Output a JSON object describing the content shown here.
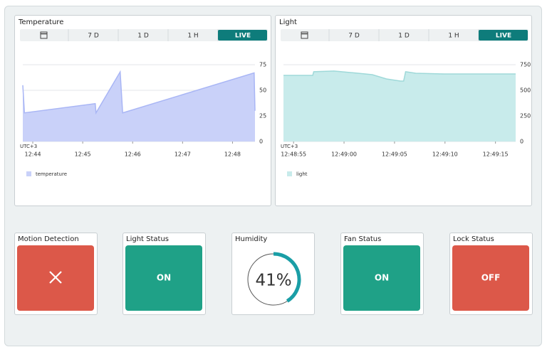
{
  "charts": [
    {
      "title": "Temperature",
      "range_buttons": [
        "7 D",
        "1 D",
        "1 H",
        "LIVE"
      ],
      "timezone": "UTC+3",
      "chart_data": {
        "type": "area",
        "x": [
          45828,
          45830,
          45915,
          45916,
          45945,
          45948,
          46106,
          46107
        ],
        "series": [
          {
            "name": "temperature",
            "color": "#a9b6f5",
            "fill": "#c9d1f9",
            "values": [
              55,
              28,
              37,
              28,
              68,
              28,
              67,
              30
            ]
          }
        ],
        "xlim": [
          45828,
          46107
        ],
        "xticks": [
          {
            "value": 45840,
            "label": "12:44"
          },
          {
            "value": 45900,
            "label": "12:45"
          },
          {
            "value": 45960,
            "label": "12:46"
          },
          {
            "value": 46020,
            "label": "12:47"
          },
          {
            "value": 46080,
            "label": "12:48"
          }
        ],
        "ylim": [
          0,
          75
        ],
        "yticks": [
          0,
          25,
          50,
          75
        ],
        "grid": true
      }
    },
    {
      "title": "Light",
      "range_buttons": [
        "7 D",
        "1 D",
        "1 H",
        "LIVE"
      ],
      "timezone": "UTC+3",
      "chart_data": {
        "type": "area",
        "x": [
          46134,
          46136.9,
          46137,
          46139,
          46141.4,
          46142.8,
          46144.2,
          46145.6,
          46145.9,
          46146.1,
          46147.1,
          46149.9,
          46157
        ],
        "series": [
          {
            "name": "light",
            "color": "#9fd9d9",
            "fill": "#c8ebeb",
            "values": [
              646,
              646,
              681,
              688,
              667,
              653,
              611,
              590,
              590,
              681,
              667,
              660,
              660
            ]
          }
        ],
        "xlim": [
          46134,
          46157
        ],
        "xticks": [
          {
            "value": 46135,
            "label": "12:48:55"
          },
          {
            "value": 46140,
            "label": "12:49:00"
          },
          {
            "value": 46145,
            "label": "12:49:05"
          },
          {
            "value": 46150,
            "label": "12:49:10"
          },
          {
            "value": 46155,
            "label": "12:49:15"
          }
        ],
        "ylim": [
          0,
          750
        ],
        "yticks": [
          0,
          250,
          500,
          750
        ],
        "grid": true
      }
    }
  ],
  "widgets": [
    {
      "title": "Motion Detection",
      "color": "#dc5849"
    },
    {
      "title": "Light Status",
      "status": "ON",
      "color": "#1fa187"
    },
    {
      "title": "Humidity",
      "value": 41,
      "value_label": "41%",
      "max": 100,
      "color": "#1a9ea6"
    },
    {
      "title": "Fan Status",
      "status": "ON",
      "color": "#1fa187"
    },
    {
      "title": "Lock Status",
      "status": "OFF",
      "color": "#dc5849"
    }
  ]
}
